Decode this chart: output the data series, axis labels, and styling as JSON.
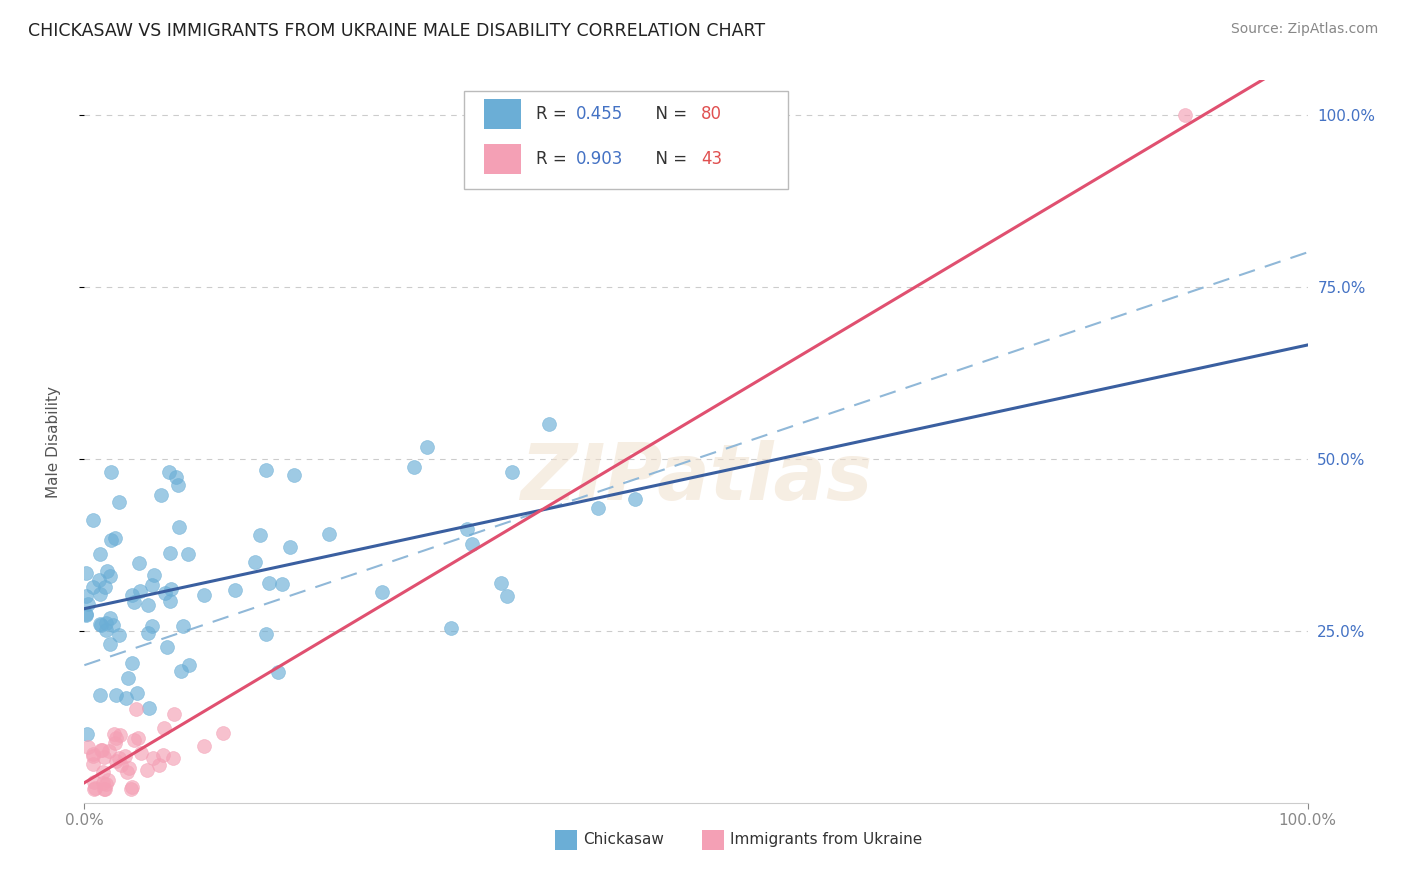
{
  "title": "CHICKASAW VS IMMIGRANTS FROM UKRAINE MALE DISABILITY CORRELATION CHART",
  "source": "Source: ZipAtlas.com",
  "ylabel": "Male Disability",
  "watermark": "ZIPatlas",
  "chickasaw_color": "#6baed6",
  "ukraine_color": "#f4a0b5",
  "blue_line_color": "#3a5fa0",
  "pink_line_color": "#e05070",
  "dash_line_color": "#90b8d8",
  "background_color": "#ffffff",
  "grid_color": "#cccccc",
  "axis_label_color": "#4472c4",
  "legend_r_color": "#4472c4",
  "legend_n_color": "#e05050",
  "chickasaw_R": 0.455,
  "chickasaw_N": 80,
  "ukraine_R": 0.903,
  "ukraine_N": 43,
  "xlim": [
    0.0,
    1.0
  ],
  "ylim": [
    0.0,
    1.05
  ]
}
